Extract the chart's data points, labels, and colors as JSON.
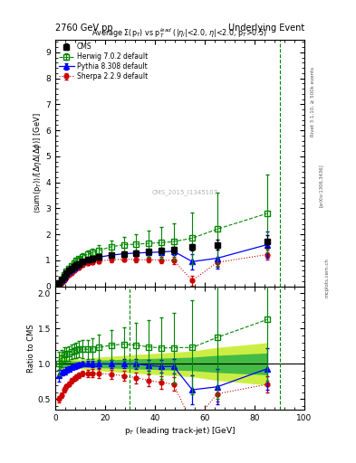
{
  "title_left": "2760 GeV pp",
  "title_right": "Underlying Event",
  "plot_title": "Average $\\Sigma$(p$_T$) vs p$_T^{lead}$ (|$\\eta_l$|<2.0, $\\eta$|<2.0, p$_T$>0.5)",
  "ylabel_main": "$\\langle$sum(p$_T$)$\\rangle$/$[\\Delta\\eta\\Delta(\\Delta\\phi)]$ [GeV]",
  "ylabel_ratio": "Ratio to CMS",
  "xlabel": "p$_T$ (leading track-jet) [GeV]",
  "rivet_label": "Rivet 3.1.10, ≥ 500k events",
  "arxiv_label": "[arXiv:1306.3436]",
  "mcplots_label": "mcplots.cern.ch",
  "watermark": "CMS_2015_I1345107",
  "cms_x": [
    1.5,
    2.5,
    3.5,
    4.5,
    5.5,
    6.5,
    7.5,
    8.5,
    9.5,
    11.0,
    13.0,
    15.0,
    17.5,
    22.5,
    27.5,
    32.5,
    37.5,
    42.5,
    47.5,
    55.0,
    65.0,
    85.0
  ],
  "cms_y": [
    0.12,
    0.25,
    0.38,
    0.5,
    0.6,
    0.68,
    0.76,
    0.82,
    0.87,
    0.95,
    1.02,
    1.07,
    1.12,
    1.2,
    1.25,
    1.28,
    1.33,
    1.37,
    1.4,
    1.5,
    1.6,
    1.72
  ],
  "cms_yerr": [
    0.01,
    0.012,
    0.015,
    0.018,
    0.02,
    0.022,
    0.025,
    0.025,
    0.025,
    0.03,
    0.035,
    0.04,
    0.05,
    0.06,
    0.07,
    0.08,
    0.09,
    0.1,
    0.11,
    0.13,
    0.18,
    0.25
  ],
  "herwig_x": [
    1.5,
    2.5,
    3.5,
    4.5,
    5.5,
    6.5,
    7.5,
    8.5,
    9.5,
    11.0,
    13.0,
    15.0,
    17.5,
    22.5,
    27.5,
    32.5,
    37.5,
    42.5,
    47.5,
    55.0,
    65.0,
    85.0
  ],
  "herwig_y": [
    0.12,
    0.27,
    0.43,
    0.57,
    0.69,
    0.8,
    0.9,
    0.98,
    1.05,
    1.15,
    1.23,
    1.3,
    1.38,
    1.52,
    1.6,
    1.62,
    1.65,
    1.68,
    1.72,
    1.85,
    2.2,
    2.8
  ],
  "herwig_yerr": [
    0.02,
    0.03,
    0.04,
    0.05,
    0.06,
    0.07,
    0.08,
    0.09,
    0.1,
    0.12,
    0.14,
    0.16,
    0.2,
    0.25,
    0.3,
    0.4,
    0.5,
    0.6,
    0.7,
    1.0,
    1.4,
    1.5
  ],
  "pythia_x": [
    1.5,
    2.5,
    3.5,
    4.5,
    5.5,
    6.5,
    7.5,
    8.5,
    9.5,
    11.0,
    13.0,
    15.0,
    17.5,
    22.5,
    27.5,
    32.5,
    37.5,
    42.5,
    47.5,
    55.0,
    65.0,
    85.0
  ],
  "pythia_y": [
    0.1,
    0.22,
    0.34,
    0.46,
    0.56,
    0.65,
    0.73,
    0.8,
    0.86,
    0.95,
    1.02,
    1.07,
    1.12,
    1.2,
    1.25,
    1.28,
    1.3,
    1.32,
    1.35,
    0.95,
    1.08,
    1.6
  ],
  "pythia_yerr": [
    0.01,
    0.01,
    0.015,
    0.015,
    0.02,
    0.02,
    0.025,
    0.025,
    0.03,
    0.03,
    0.04,
    0.05,
    0.06,
    0.07,
    0.08,
    0.09,
    0.1,
    0.12,
    0.14,
    0.3,
    0.4,
    0.5
  ],
  "sherpa_x": [
    1.5,
    2.5,
    3.5,
    4.5,
    5.5,
    6.5,
    7.5,
    8.5,
    9.5,
    11.0,
    13.0,
    15.0,
    17.5,
    22.5,
    27.5,
    32.5,
    37.5,
    42.5,
    47.5,
    55.0,
    65.0,
    85.0
  ],
  "sherpa_y": [
    0.06,
    0.14,
    0.24,
    0.34,
    0.43,
    0.52,
    0.6,
    0.67,
    0.73,
    0.82,
    0.88,
    0.93,
    0.97,
    1.02,
    1.04,
    1.03,
    1.02,
    1.01,
    1.0,
    0.22,
    0.92,
    1.22
  ],
  "sherpa_yerr": [
    0.005,
    0.01,
    0.015,
    0.015,
    0.02,
    0.025,
    0.025,
    0.03,
    0.035,
    0.04,
    0.05,
    0.06,
    0.07,
    0.08,
    0.09,
    0.1,
    0.11,
    0.12,
    0.13,
    0.2,
    0.18,
    0.2
  ],
  "vline_x1": 90.0,
  "vline_x2": 30.0,
  "cms_color": "#000000",
  "herwig_color": "#008800",
  "pythia_color": "#0000ff",
  "sherpa_color": "#cc0000",
  "ratio_band_green": "#44bb44",
  "ratio_band_yellow": "#ccee44",
  "ylim_main": [
    0.0,
    9.5
  ],
  "ylim_ratio": [
    0.35,
    2.1
  ],
  "xlim": [
    0,
    100
  ],
  "yticks_main": [
    0,
    1,
    2,
    3,
    4,
    5,
    6,
    7,
    8,
    9
  ],
  "yticks_ratio": [
    0.5,
    1.0,
    1.5,
    2.0
  ],
  "xticks": [
    0,
    20,
    40,
    60,
    80,
    100
  ]
}
